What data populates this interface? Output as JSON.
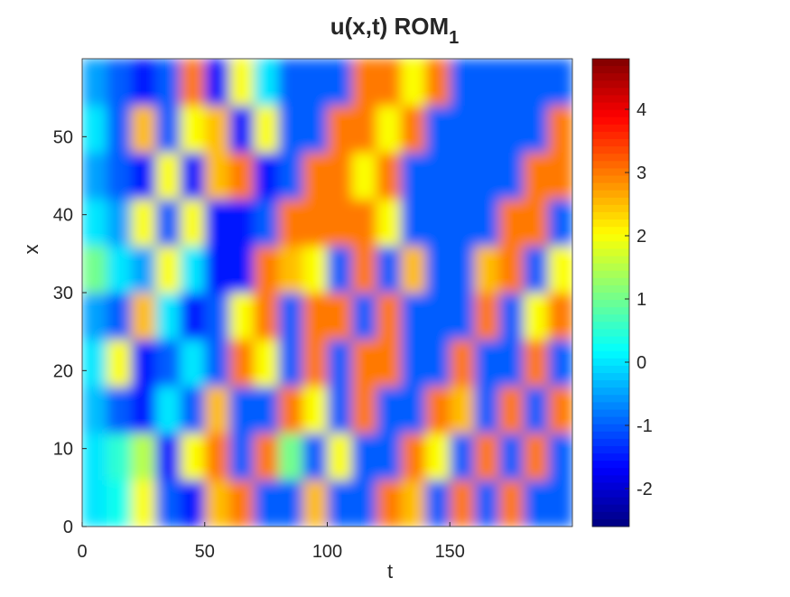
{
  "chart_data": {
    "type": "heatmap",
    "title": "u(x,t) ROM",
    "title_subscript": "1",
    "xlabel": "t",
    "ylabel": "x",
    "x": [
      0,
      10,
      20,
      30,
      40,
      50,
      60,
      70,
      80,
      90,
      100,
      110,
      120,
      130,
      140,
      150,
      160,
      170,
      180,
      190,
      200
    ],
    "y": [
      0,
      6,
      12,
      18,
      24,
      30,
      36,
      42,
      48,
      54,
      60
    ],
    "z": [
      [
        0,
        0.3,
        2,
        -1,
        -1.5,
        2.5,
        3,
        -1,
        -1,
        2.5,
        -1,
        -1,
        3,
        2.5,
        -1,
        3,
        -1,
        3,
        -1,
        -1
      ],
      [
        0,
        0.5,
        1.5,
        -1.5,
        2,
        3,
        -1,
        3,
        1,
        -1,
        2,
        -1,
        -1,
        3,
        2,
        -1,
        3,
        -1,
        3,
        -1
      ],
      [
        -0.3,
        -1,
        -1.5,
        0,
        -1,
        2.5,
        -1,
        -1,
        3,
        2,
        -1,
        3,
        -1,
        -1,
        3,
        2.5,
        -1,
        3,
        -1,
        3
      ],
      [
        0,
        2,
        -1.5,
        -1,
        0,
        -1,
        3,
        2,
        -1,
        3,
        -1,
        3,
        3,
        -1,
        -1,
        3,
        -1,
        -1,
        3,
        -1
      ],
      [
        -0.5,
        -1,
        2.5,
        0,
        -1.5,
        -1,
        2,
        3,
        -1,
        3,
        3,
        -1,
        3,
        -1,
        -1,
        -1,
        3,
        -1,
        2,
        3
      ],
      [
        1,
        0,
        -0.5,
        2,
        0,
        -1.5,
        -1.5,
        3,
        2.5,
        2,
        -1,
        3,
        -1,
        2.5,
        -1,
        -1,
        2.5,
        3,
        -1,
        2
      ],
      [
        0,
        -0.5,
        2,
        -1,
        2,
        -1.5,
        -1.5,
        -1,
        3,
        3,
        3,
        3,
        2,
        -1,
        -1,
        -1,
        -1,
        3,
        3,
        -1
      ],
      [
        -0.5,
        -1,
        -1.5,
        2,
        -1.5,
        2.5,
        3,
        -1.5,
        -1,
        3,
        3,
        2,
        3,
        -1,
        -1,
        -1,
        -1,
        -1,
        3,
        3
      ],
      [
        0,
        -1,
        2.5,
        -1,
        2,
        2.5,
        -1.5,
        2,
        -1,
        -1,
        3,
        3,
        2,
        3,
        -1,
        -1,
        -1,
        -1,
        -1,
        3
      ],
      [
        -0.5,
        -1,
        -1.5,
        -1,
        3,
        -1.5,
        2,
        0,
        -1,
        -1,
        -1,
        3,
        3,
        2,
        3,
        -1,
        -1,
        -1,
        -1,
        -1
      ]
    ],
    "xlim": [
      0,
      200
    ],
    "xticks": [
      0,
      50,
      100,
      150
    ],
    "ylim": [
      0,
      60
    ],
    "yticks": [
      0,
      10,
      20,
      30,
      40,
      50
    ],
    "clim": [
      -2.6,
      4.8
    ],
    "cticks": [
      -2,
      -1,
      0,
      1,
      2,
      3,
      4
    ],
    "colormap": "jet"
  }
}
